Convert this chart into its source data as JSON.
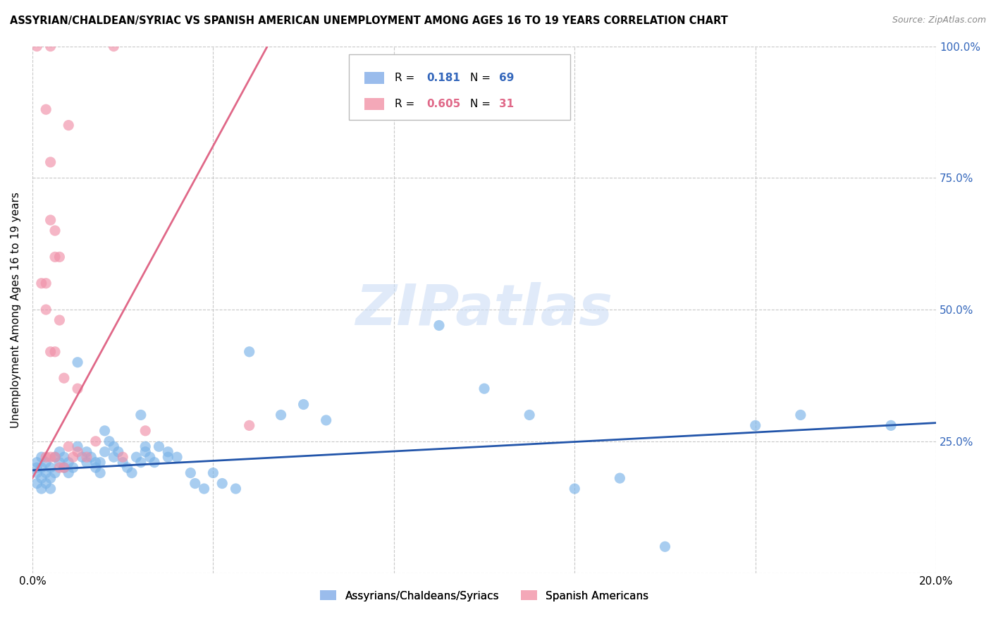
{
  "title": "ASSYRIAN/CHALDEAN/SYRIAC VS SPANISH AMERICAN UNEMPLOYMENT AMONG AGES 16 TO 19 YEARS CORRELATION CHART",
  "source": "Source: ZipAtlas.com",
  "ylabel": "Unemployment Among Ages 16 to 19 years",
  "xlim": [
    0.0,
    0.2
  ],
  "ylim": [
    0.0,
    1.0
  ],
  "xticks": [
    0.0,
    0.04,
    0.08,
    0.12,
    0.16,
    0.2
  ],
  "xticklabels": [
    "0.0%",
    "",
    "",
    "",
    "",
    "20.0%"
  ],
  "yticks": [
    0.0,
    0.25,
    0.5,
    0.75,
    1.0
  ],
  "ytick_labels_right": [
    "",
    "25.0%",
    "50.0%",
    "75.0%",
    "100.0%"
  ],
  "watermark_text": "ZIPatlas",
  "blue_scatter_color": "#7ab3e8",
  "pink_scatter_color": "#f090a8",
  "blue_line_color": "#2255aa",
  "pink_line_color": "#e06888",
  "legend_blue_color": "#9abcec",
  "legend_pink_color": "#f4a8b8",
  "grid_color": "#c8c8c8",
  "background": "#ffffff",
  "tick_label_color": "#3366bb",
  "assyrian_points": [
    [
      0.001,
      0.19
    ],
    [
      0.001,
      0.17
    ],
    [
      0.001,
      0.2
    ],
    [
      0.001,
      0.21
    ],
    [
      0.002,
      0.18
    ],
    [
      0.002,
      0.16
    ],
    [
      0.002,
      0.22
    ],
    [
      0.002,
      0.2
    ],
    [
      0.003,
      0.17
    ],
    [
      0.003,
      0.19
    ],
    [
      0.003,
      0.21
    ],
    [
      0.004,
      0.16
    ],
    [
      0.004,
      0.18
    ],
    [
      0.004,
      0.2
    ],
    [
      0.005,
      0.22
    ],
    [
      0.005,
      0.19
    ],
    [
      0.006,
      0.23
    ],
    [
      0.006,
      0.21
    ],
    [
      0.007,
      0.2
    ],
    [
      0.007,
      0.22
    ],
    [
      0.008,
      0.21
    ],
    [
      0.008,
      0.19
    ],
    [
      0.009,
      0.2
    ],
    [
      0.01,
      0.24
    ],
    [
      0.01,
      0.4
    ],
    [
      0.011,
      0.22
    ],
    [
      0.012,
      0.21
    ],
    [
      0.012,
      0.23
    ],
    [
      0.013,
      0.22
    ],
    [
      0.014,
      0.2
    ],
    [
      0.014,
      0.21
    ],
    [
      0.015,
      0.19
    ],
    [
      0.015,
      0.21
    ],
    [
      0.016,
      0.27
    ],
    [
      0.016,
      0.23
    ],
    [
      0.017,
      0.25
    ],
    [
      0.018,
      0.22
    ],
    [
      0.018,
      0.24
    ],
    [
      0.019,
      0.23
    ],
    [
      0.02,
      0.21
    ],
    [
      0.021,
      0.2
    ],
    [
      0.022,
      0.19
    ],
    [
      0.023,
      0.22
    ],
    [
      0.024,
      0.21
    ],
    [
      0.024,
      0.3
    ],
    [
      0.025,
      0.23
    ],
    [
      0.025,
      0.24
    ],
    [
      0.026,
      0.22
    ],
    [
      0.027,
      0.21
    ],
    [
      0.028,
      0.24
    ],
    [
      0.03,
      0.23
    ],
    [
      0.03,
      0.22
    ],
    [
      0.032,
      0.22
    ],
    [
      0.035,
      0.19
    ],
    [
      0.036,
      0.17
    ],
    [
      0.038,
      0.16
    ],
    [
      0.04,
      0.19
    ],
    [
      0.042,
      0.17
    ],
    [
      0.045,
      0.16
    ],
    [
      0.048,
      0.42
    ],
    [
      0.055,
      0.3
    ],
    [
      0.06,
      0.32
    ],
    [
      0.065,
      0.29
    ],
    [
      0.09,
      0.47
    ],
    [
      0.1,
      0.35
    ],
    [
      0.11,
      0.3
    ],
    [
      0.12,
      0.16
    ],
    [
      0.13,
      0.18
    ],
    [
      0.14,
      0.05
    ],
    [
      0.16,
      0.28
    ],
    [
      0.17,
      0.3
    ],
    [
      0.19,
      0.28
    ]
  ],
  "spanish_points": [
    [
      0.001,
      1.0
    ],
    [
      0.004,
      1.0
    ],
    [
      0.018,
      1.0
    ],
    [
      0.003,
      0.88
    ],
    [
      0.008,
      0.85
    ],
    [
      0.004,
      0.78
    ],
    [
      0.004,
      0.67
    ],
    [
      0.005,
      0.65
    ],
    [
      0.005,
      0.6
    ],
    [
      0.006,
      0.6
    ],
    [
      0.002,
      0.55
    ],
    [
      0.003,
      0.55
    ],
    [
      0.003,
      0.5
    ],
    [
      0.006,
      0.48
    ],
    [
      0.004,
      0.42
    ],
    [
      0.005,
      0.42
    ],
    [
      0.007,
      0.37
    ],
    [
      0.01,
      0.35
    ],
    [
      0.003,
      0.22
    ],
    [
      0.004,
      0.22
    ],
    [
      0.005,
      0.22
    ],
    [
      0.006,
      0.2
    ],
    [
      0.007,
      0.2
    ],
    [
      0.008,
      0.24
    ],
    [
      0.009,
      0.22
    ],
    [
      0.01,
      0.23
    ],
    [
      0.012,
      0.22
    ],
    [
      0.014,
      0.25
    ],
    [
      0.02,
      0.22
    ],
    [
      0.025,
      0.27
    ],
    [
      0.048,
      0.28
    ]
  ],
  "blue_line": {
    "x0": 0.0,
    "y0": 0.195,
    "x1": 0.2,
    "y1": 0.285
  },
  "pink_line": {
    "x0": 0.0,
    "y0": 0.18,
    "x1": 0.052,
    "y1": 1.0
  }
}
